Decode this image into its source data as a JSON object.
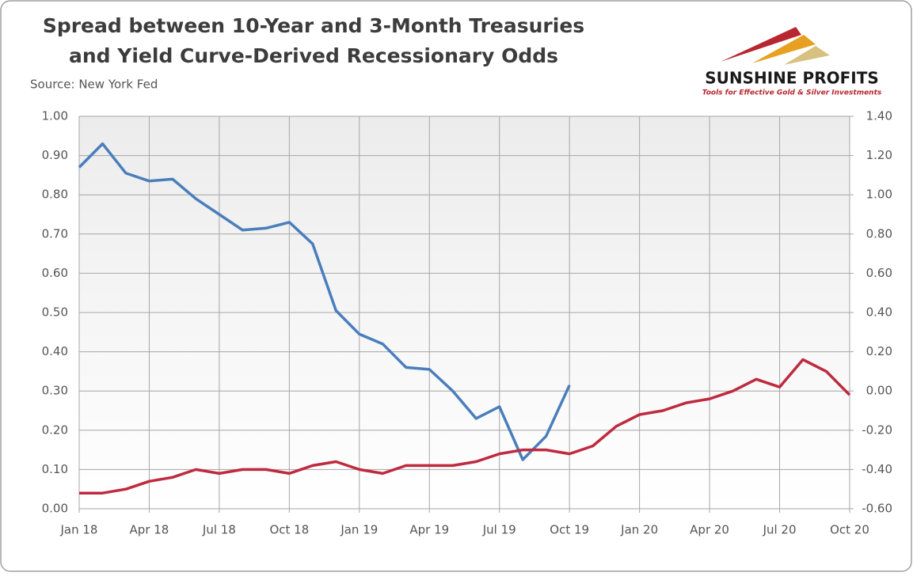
{
  "chart_data": {
    "type": "line",
    "title": [
      "Spread between 10-Year and 3-Month Treasuries",
      "and Yield Curve-Derived Recessionary Odds"
    ],
    "subtitle": "Source: New York Fed",
    "logo": {
      "name": "SUNSHINE PROFITS",
      "tagline": "Tools for Effective Gold & Silver Investments"
    },
    "categories": [
      "Jan 18",
      null,
      null,
      "Apr 18",
      null,
      null,
      "Jul 18",
      null,
      null,
      "Oct 18",
      null,
      null,
      "Jan 19",
      null,
      null,
      "Apr 19",
      null,
      null,
      "Jul 19",
      null,
      null,
      "Oct 19",
      null,
      null,
      "Jan 20",
      null,
      null,
      "Apr 20",
      null,
      null,
      "Jul 20",
      null,
      null,
      "Oct 20"
    ],
    "series": [
      {
        "color": "#4a7ebb",
        "axis": "y2",
        "values": [
          1.14,
          1.26,
          1.11,
          1.07,
          1.08,
          0.98,
          0.9,
          0.82,
          0.83,
          0.86,
          0.75,
          0.41,
          0.29,
          0.24,
          0.12,
          0.11,
          0.0,
          -0.14,
          -0.08,
          -0.35,
          -0.23,
          0.03,
          null,
          null,
          null,
          null,
          null,
          null,
          null,
          null,
          null,
          null,
          null,
          null
        ]
      },
      {
        "color": "#be2a3e",
        "values": [
          0.04,
          0.04,
          0.05,
          0.07,
          0.08,
          0.1,
          0.09,
          0.1,
          0.1,
          0.09,
          0.11,
          0.12,
          0.1,
          0.09,
          0.11,
          0.11,
          0.11,
          0.12,
          0.14,
          0.15,
          0.15,
          0.14,
          0.16,
          0.21,
          0.24,
          0.25,
          0.27,
          0.28,
          0.3,
          0.33,
          0.31,
          0.38,
          0.35,
          0.29
        ]
      }
    ],
    "ylim": [
      0,
      1
    ],
    "yticks": [
      {
        "value": 0,
        "label": "0.00"
      },
      {
        "value": 0.1,
        "label": "0.10"
      },
      {
        "value": 0.2,
        "label": "0.20"
      },
      {
        "value": 0.3,
        "label": "0.30"
      },
      {
        "value": 0.4,
        "label": "0.40"
      },
      {
        "value": 0.5,
        "label": "0.50"
      },
      {
        "value": 0.6,
        "label": "0.60"
      },
      {
        "value": 0.7,
        "label": "0.70"
      },
      {
        "value": 0.8,
        "label": "0.80"
      },
      {
        "value": 0.9,
        "label": "0.90"
      },
      {
        "value": 1,
        "label": "1.00"
      }
    ],
    "y2lim": [
      -0.6,
      1.4
    ],
    "y2ticks": [
      {
        "value": -0.6,
        "label": "-0.60"
      },
      {
        "value": -0.4,
        "label": "-0.40"
      },
      {
        "value": -0.2,
        "label": "-0.20"
      },
      {
        "value": 0,
        "label": "0.00"
      },
      {
        "value": 0.2,
        "label": "0.20"
      },
      {
        "value": 0.4,
        "label": "0.40"
      },
      {
        "value": 0.6,
        "label": "0.60"
      },
      {
        "value": 0.8,
        "label": "0.80"
      },
      {
        "value": 1,
        "label": "1.00"
      },
      {
        "value": 1.2,
        "label": "1.20"
      },
      {
        "value": 1.4,
        "label": "1.40"
      }
    ],
    "grid": true
  }
}
